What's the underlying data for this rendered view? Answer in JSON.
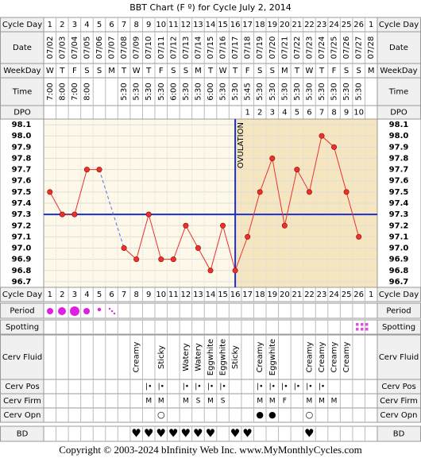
{
  "chart_data": {
    "type": "line",
    "title": "BBT Chart (F º) for Cycle July 2, 2014",
    "categories": [
      "1",
      "2",
      "3",
      "4",
      "5",
      "6",
      "7",
      "8",
      "9",
      "10",
      "11",
      "12",
      "13",
      "14",
      "15",
      "16",
      "17",
      "18",
      "19",
      "20",
      "21",
      "22",
      "23",
      "24",
      "25",
      "26",
      "1"
    ],
    "dates": [
      "07/02",
      "07/03",
      "07/04",
      "07/05",
      "07/06",
      "07/07",
      "07/08",
      "07/09",
      "07/10",
      "07/11",
      "07/12",
      "07/13",
      "07/14",
      "07/15",
      "07/16",
      "07/17",
      "07/18",
      "07/19",
      "07/20",
      "07/21",
      "07/22",
      "07/23",
      "07/24",
      "07/25",
      "07/26",
      "07/27",
      "07/28"
    ],
    "weekdays": [
      "W",
      "T",
      "F",
      "S",
      "S",
      "M",
      "T",
      "W",
      "T",
      "F",
      "S",
      "S",
      "M",
      "T",
      "W",
      "T",
      "F",
      "S",
      "S",
      "M",
      "T",
      "W",
      "T",
      "F",
      "S",
      "S",
      "M"
    ],
    "times": [
      "7:00",
      "8:00",
      "7:00",
      "8:00",
      null,
      null,
      "5:30",
      "5:30",
      "5:30",
      "5:30",
      "6:00",
      "5:30",
      "5:30",
      "6:00",
      "5:30",
      "5:30",
      "5:45",
      "5:30",
      "5:30",
      "5:30",
      "5:30",
      "5:30",
      "5:30",
      "5:30",
      "5:30",
      "5:30",
      null
    ],
    "dpo": [
      null,
      null,
      null,
      null,
      null,
      null,
      null,
      null,
      null,
      null,
      null,
      null,
      null,
      null,
      null,
      null,
      1,
      2,
      3,
      4,
      5,
      6,
      7,
      8,
      9,
      10,
      null
    ],
    "values": [
      97.5,
      97.3,
      97.3,
      97.7,
      97.7,
      null,
      97.0,
      96.9,
      97.3,
      96.9,
      96.9,
      97.2,
      97.0,
      96.8,
      97.2,
      96.8,
      97.1,
      97.5,
      97.8,
      97.2,
      97.7,
      97.5,
      98.0,
      97.9,
      97.5,
      97.1,
      null
    ],
    "color": "#e8322e",
    "ylim": [
      96.65,
      98.15
    ],
    "yticks": [
      {
        "value": 96.7,
        "label": "96.7"
      },
      {
        "value": 96.8,
        "label": "96.8"
      },
      {
        "value": 96.9,
        "label": "96.9"
      },
      {
        "value": 97,
        "label": "97.0"
      },
      {
        "value": 97.1,
        "label": "97.1"
      },
      {
        "value": 97.2,
        "label": "97.2"
      },
      {
        "value": 97.3,
        "label": "97.3"
      },
      {
        "value": 97.4,
        "label": "97.4"
      },
      {
        "value": 97.5,
        "label": "97.5"
      },
      {
        "value": 97.6,
        "label": "97.6"
      },
      {
        "value": 97.7,
        "label": "97.7"
      },
      {
        "value": 97.8,
        "label": "97.8"
      },
      {
        "value": 97.9,
        "label": "97.9"
      },
      {
        "value": 98,
        "label": "98.0"
      },
      {
        "value": 98.1,
        "label": "98.1"
      }
    ],
    "coverline": {
      "value": 97.3,
      "color": "#1a2fd0"
    },
    "ovulation": {
      "label": "OVULATION",
      "category": "16",
      "color": "#1a2fd0"
    },
    "grid": true
  },
  "row_labels": {
    "cycle_day": "Cycle Day",
    "date": "Date",
    "weekday": "WeekDay",
    "time": "Time",
    "dpo": "DPO",
    "period": "Period",
    "spotting": "Spotting",
    "cerv_fluid": "Cerv Fluid",
    "cerv_pos": "Cerv Pos",
    "cerv_firm": "Cerv Firm",
    "cerv_opn": "Cerv Opn",
    "bd": "BD"
  },
  "cerv_fluid": [
    null,
    null,
    null,
    null,
    null,
    null,
    null,
    "Creamy",
    null,
    "Sticky",
    null,
    "Watery",
    "Watery",
    "Eggwhite",
    "Eggwhite",
    "Sticky",
    null,
    "Creamy",
    "Eggwhite",
    null,
    null,
    "Creamy",
    "Creamy",
    "Creamy",
    "Creamy",
    null,
    null
  ],
  "cerv_pos": [
    null,
    null,
    null,
    null,
    null,
    null,
    null,
    null,
    "|•",
    "|•",
    null,
    "|•",
    "|•",
    "|•",
    "|•",
    null,
    null,
    "|•",
    "|•",
    "|•",
    "|•",
    "|•",
    "|•",
    null,
    null,
    null,
    null
  ],
  "cerv_firm": [
    null,
    null,
    null,
    null,
    null,
    null,
    null,
    null,
    "M",
    "M",
    null,
    "M",
    "S",
    "M",
    "S",
    null,
    null,
    "M",
    "M",
    "F",
    null,
    "M",
    "M",
    "M",
    null,
    null,
    null
  ],
  "cerv_opn": [
    null,
    null,
    null,
    null,
    null,
    null,
    null,
    null,
    null,
    "○",
    null,
    null,
    null,
    null,
    null,
    null,
    null,
    "●",
    "●",
    null,
    null,
    "○",
    null,
    null,
    null,
    null,
    null
  ],
  "bd": [
    null,
    null,
    null,
    null,
    null,
    null,
    null,
    "♥",
    "♥",
    "♥",
    "♥",
    "♥",
    "♥",
    "♥",
    null,
    "♥",
    "♥",
    null,
    null,
    null,
    null,
    "♥",
    null,
    null,
    null,
    null,
    null
  ],
  "footer": "Copyright © 2003-2024 bInfinity Web Inc.    www.MyMonthlyCycles.com"
}
